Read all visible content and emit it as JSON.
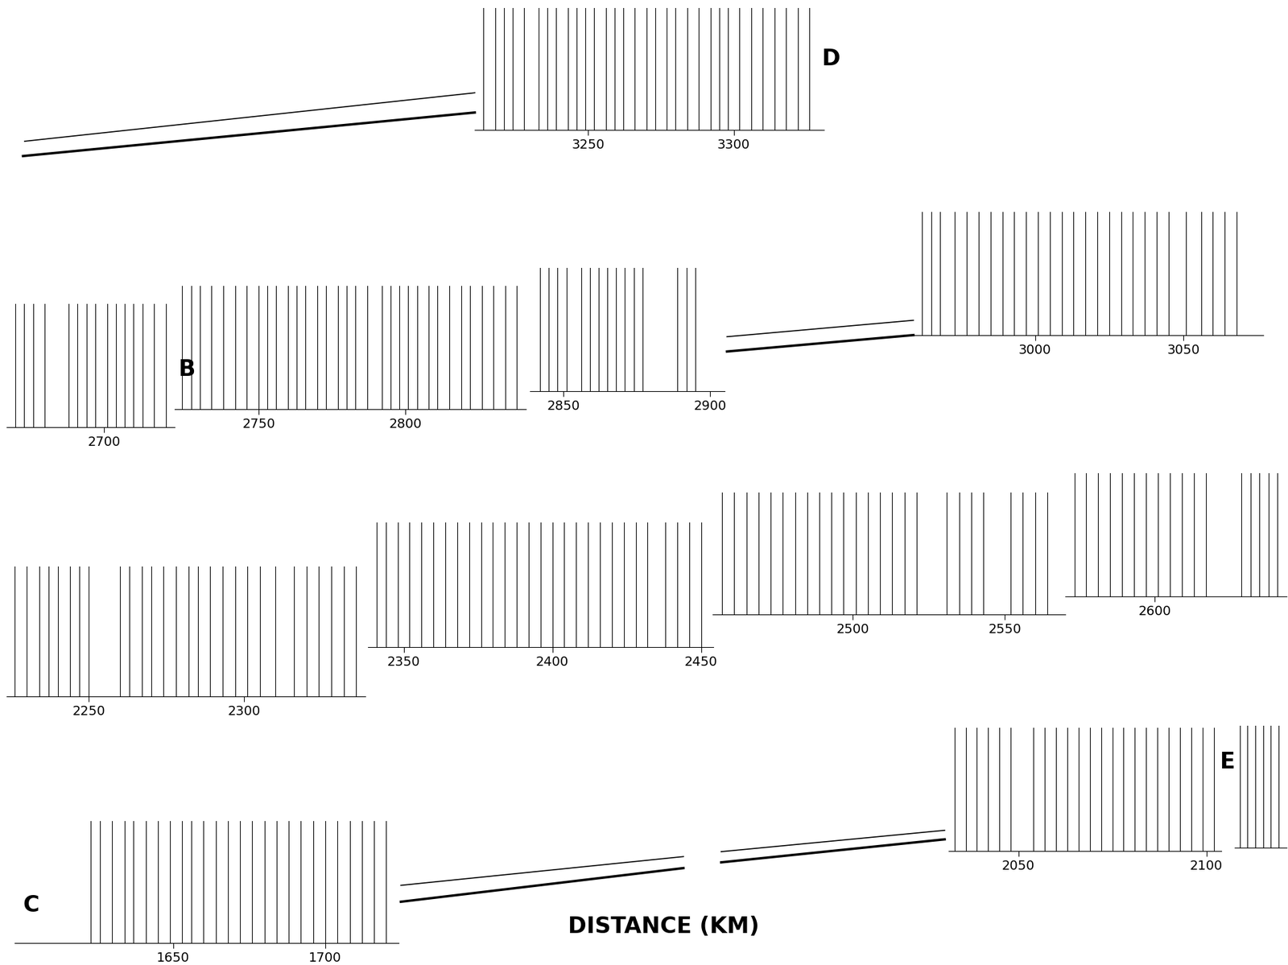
{
  "chart_data": {
    "type": "record_section",
    "xlabel": "DISTANCE (KM)",
    "panels": [
      {
        "label": "D",
        "xlim": [
          3211,
          3331
        ],
        "xticks": [
          3250,
          3300
        ],
        "traces": [
          3214,
          3218,
          3221,
          3224,
          3228,
          3233,
          3236,
          3239,
          3243,
          3246,
          3249,
          3252,
          3256,
          3259,
          3262,
          3266,
          3270,
          3273,
          3277,
          3280,
          3284,
          3288,
          3292,
          3295,
          3298,
          3302,
          3306,
          3310,
          3314,
          3318,
          3322,
          3326
        ]
      },
      {
        "xlim": [
          2667,
          2724
        ],
        "xticks": [
          2700
        ],
        "traces": [
          2670,
          2673,
          2676,
          2680,
          2688,
          2691,
          2694,
          2697,
          2701,
          2704,
          2707,
          2710,
          2713,
          2717,
          2721
        ]
      },
      {
        "label": "B",
        "xlim": [
          2721.5,
          2841
        ],
        "xticks": [
          2750,
          2800
        ],
        "traces": [
          2724,
          2727,
          2730,
          2734,
          2738,
          2742,
          2746,
          2750,
          2753,
          2756,
          2760,
          2763,
          2766,
          2770,
          2773,
          2777,
          2780,
          2783,
          2787,
          2792,
          2795,
          2798,
          2801,
          2804,
          2808,
          2811,
          2815,
          2819,
          2822,
          2826,
          2830,
          2834,
          2838
        ]
      },
      {
        "xlim": [
          2838.5,
          2905
        ],
        "xticks": [
          2850,
          2900
        ],
        "traces": [
          2842,
          2845,
          2848,
          2851,
          2856,
          2859,
          2862,
          2865,
          2868,
          2871,
          2874,
          2877,
          2889,
          2892,
          2895
        ]
      },
      {
        "xlim": [
          2959,
          3077
        ],
        "xticks": [
          3000,
          3050
        ],
        "traces": [
          2962,
          2965,
          2968,
          2973,
          2977,
          2981,
          2985,
          2989,
          2993,
          2997,
          3001,
          3005,
          3009,
          3013,
          3017,
          3021,
          3025,
          3029,
          3033,
          3037,
          3041,
          3045,
          3051,
          3056,
          3060,
          3064,
          3068
        ]
      },
      {
        "xlim": [
          2223.5,
          2339
        ],
        "xticks": [
          2250,
          2300
        ],
        "traces": [
          2226,
          2230,
          2234,
          2237,
          2240,
          2244,
          2247,
          2250,
          2260,
          2263,
          2267,
          2270,
          2274,
          2278,
          2282,
          2285,
          2289,
          2293,
          2297,
          2301,
          2305,
          2310,
          2316,
          2320,
          2324,
          2328,
          2332,
          2336
        ]
      },
      {
        "xlim": [
          2338,
          2454
        ],
        "xticks": [
          2350,
          2400,
          2450
        ],
        "traces": [
          2341,
          2344,
          2348,
          2352,
          2356,
          2360,
          2364,
          2368,
          2372,
          2376,
          2380,
          2384,
          2388,
          2392,
          2396,
          2400,
          2404,
          2408,
          2412,
          2416,
          2420,
          2424,
          2428,
          2432,
          2438,
          2442,
          2446,
          2450
        ]
      },
      {
        "xlim": [
          2454,
          2570
        ],
        "xticks": [
          2500,
          2550
        ],
        "traces": [
          2457,
          2461,
          2465,
          2469,
          2473,
          2477,
          2481,
          2485,
          2489,
          2493,
          2497,
          2501,
          2505,
          2509,
          2513,
          2517,
          2521,
          2531,
          2535,
          2539,
          2543,
          2552,
          2556,
          2560,
          2564
        ]
      },
      {
        "xlim": [
          2570,
          2644
        ],
        "xticks": [
          2600
        ],
        "traces": [
          2573,
          2577,
          2581,
          2585,
          2589,
          2593,
          2597,
          2601,
          2605,
          2609,
          2613,
          2617,
          2629,
          2632,
          2635,
          2638,
          2641
        ]
      },
      {
        "label": "C",
        "xlim": [
          1598,
          1724
        ],
        "xticks": [
          1650,
          1700
        ],
        "traces": [
          1623,
          1626,
          1630,
          1634,
          1637,
          1641,
          1645,
          1649,
          1653,
          1656,
          1660,
          1664,
          1668,
          1672,
          1676,
          1680,
          1684,
          1688,
          1692,
          1696,
          1700,
          1704,
          1708,
          1712,
          1716,
          1720
        ]
      },
      {
        "xlim": [
          2031.5,
          2104
        ],
        "xticks": [
          2050,
          2100
        ],
        "traces": [
          2033,
          2036,
          2039,
          2042,
          2045,
          2048,
          2054,
          2057,
          2060,
          2063,
          2066,
          2069,
          2072,
          2075,
          2078,
          2081,
          2084,
          2087,
          2090,
          2093,
          2096,
          2099,
          2102
        ]
      },
      {
        "label": "E",
        "xlim": [
          2105,
          2125
        ],
        "xticks": [],
        "traces": [
          2107,
          2110,
          2113,
          2116,
          2119,
          2122
        ]
      }
    ]
  }
}
